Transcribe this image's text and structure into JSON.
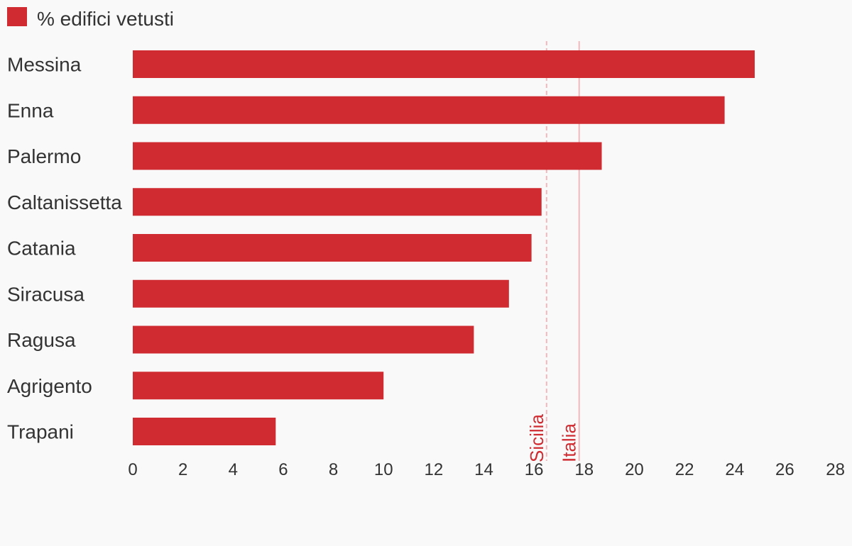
{
  "chart_data": {
    "type": "bar",
    "orientation": "horizontal",
    "categories": [
      "Messina",
      "Enna",
      "Palermo",
      "Caltanissetta",
      "Catania",
      "Siracusa",
      "Ragusa",
      "Agrigento",
      "Trapani"
    ],
    "series": [
      {
        "name": "% edifici vetusti",
        "values": [
          24.8,
          23.6,
          18.7,
          16.3,
          15.9,
          15.0,
          13.6,
          10.0,
          5.7
        ],
        "color": "#cf2b31"
      }
    ],
    "xlim": [
      0,
      28
    ],
    "xticks": [
      0,
      2,
      4,
      6,
      8,
      10,
      12,
      14,
      16,
      18,
      20,
      22,
      24,
      26,
      28
    ],
    "reference_lines": [
      {
        "label": "Sicilia",
        "value": 16.5,
        "style": "dashed",
        "color": "#f2b8bb",
        "label_color": "#cf2b31"
      },
      {
        "label": "Italia",
        "value": 17.8,
        "style": "solid",
        "color": "#f2b8bb",
        "label_color": "#cf2b31"
      }
    ],
    "legend_position": "top-left",
    "grid": false
  }
}
